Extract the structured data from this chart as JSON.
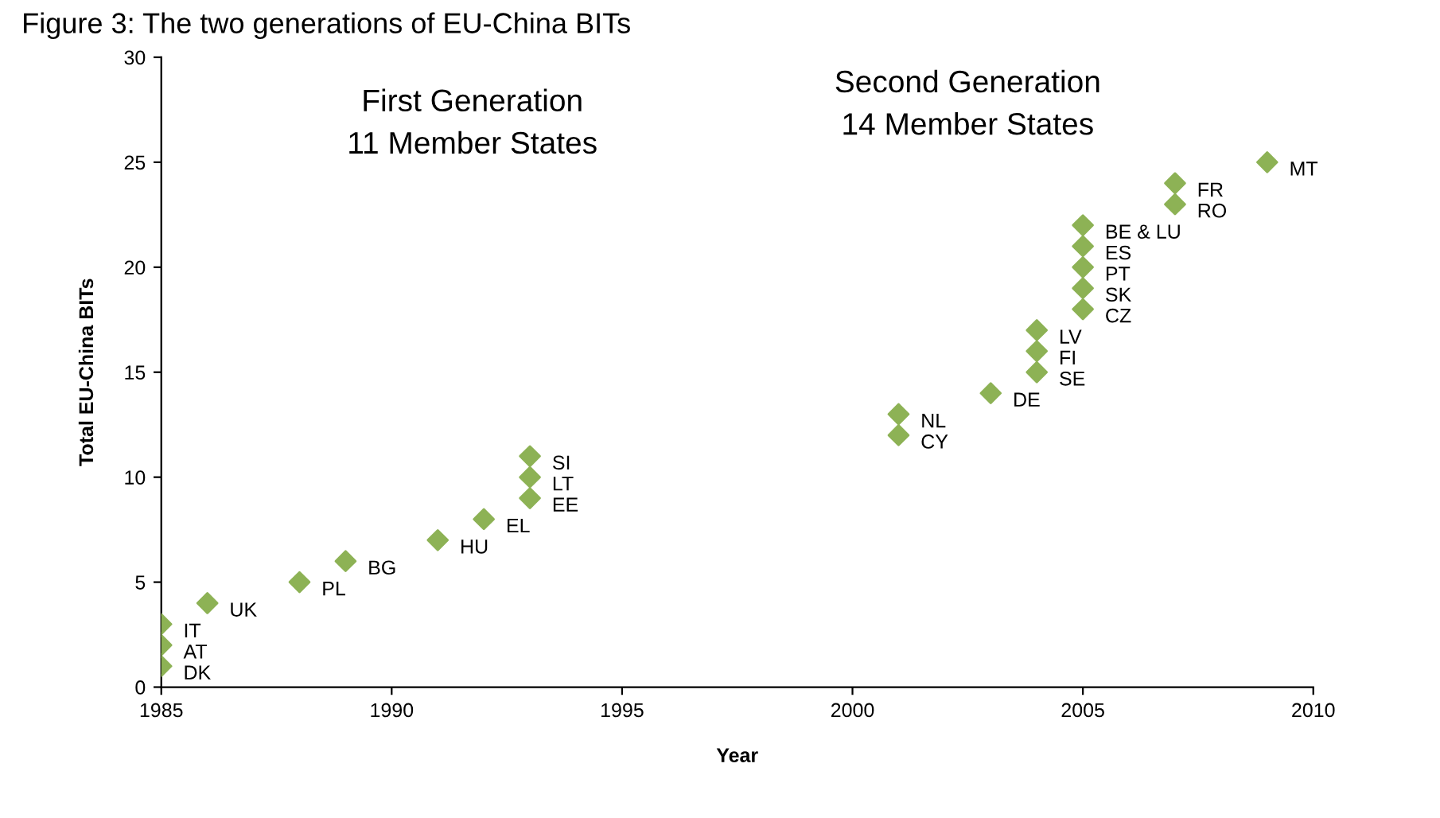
{
  "chart_data": {
    "type": "scatter",
    "title": "Figure 3: The two generations of EU-China BITs",
    "xlabel": "Year",
    "ylabel": "Total EU-China BITs",
    "x": [
      1985,
      1985,
      1985,
      1986,
      1988,
      1989,
      1991,
      1992,
      1993,
      1993,
      1993,
      2001,
      2001,
      2003,
      2004,
      2004,
      2004,
      2005,
      2005,
      2005,
      2005,
      2005,
      2007,
      2007,
      2009
    ],
    "values": [
      1,
      2,
      3,
      4,
      5,
      6,
      7,
      8,
      9,
      10,
      11,
      12,
      13,
      14,
      15,
      16,
      17,
      18,
      19,
      20,
      21,
      22,
      23,
      24,
      25
    ],
    "color": "#8db255",
    "marker": "diamond",
    "xlim": [
      1985,
      2010
    ],
    "xticks": [
      1985,
      1990,
      1995,
      2000,
      2005,
      2010
    ],
    "ylim": [
      0,
      30
    ],
    "yticks": [
      0,
      5,
      10,
      15,
      20,
      25,
      30
    ],
    "grid": false,
    "annotations": [
      "First Generation\n11 Member States",
      "Second Generation\n14 Member States",
      {
        "text": "DK",
        "x": 1985,
        "y": 1
      },
      {
        "text": "AT",
        "x": 1985,
        "y": 2
      },
      {
        "text": "IT",
        "x": 1985,
        "y": 3
      },
      {
        "text": "UK",
        "x": 1986,
        "y": 4
      },
      {
        "text": "PL",
        "x": 1988,
        "y": 5
      },
      {
        "text": "BG",
        "x": 1989,
        "y": 6
      },
      {
        "text": "HU",
        "x": 1991,
        "y": 7
      },
      {
        "text": "EL",
        "x": 1992,
        "y": 8
      },
      {
        "text": "EE",
        "x": 1993,
        "y": 9
      },
      {
        "text": "LT",
        "x": 1993,
        "y": 10
      },
      {
        "text": "SI",
        "x": 1993,
        "y": 11
      },
      {
        "text": "CY",
        "x": 2001,
        "y": 12
      },
      {
        "text": "NL",
        "x": 2001,
        "y": 13
      },
      {
        "text": "DE",
        "x": 2003,
        "y": 14
      },
      {
        "text": "SE",
        "x": 2004,
        "y": 15
      },
      {
        "text": "FI",
        "x": 2004,
        "y": 16
      },
      {
        "text": "LV",
        "x": 2004,
        "y": 17
      },
      {
        "text": "CZ",
        "x": 2005,
        "y": 18
      },
      {
        "text": "SK",
        "x": 2005,
        "y": 19
      },
      {
        "text": "PT",
        "x": 2005,
        "y": 20
      },
      {
        "text": "ES",
        "x": 2005,
        "y": 21
      },
      {
        "text": "BE & LU",
        "x": 2005,
        "y": 22
      },
      {
        "text": "RO",
        "x": 2007,
        "y": 23
      },
      {
        "text": "FR",
        "x": 2007,
        "y": 24
      },
      {
        "text": "MT",
        "x": 2009,
        "y": 25
      }
    ]
  }
}
